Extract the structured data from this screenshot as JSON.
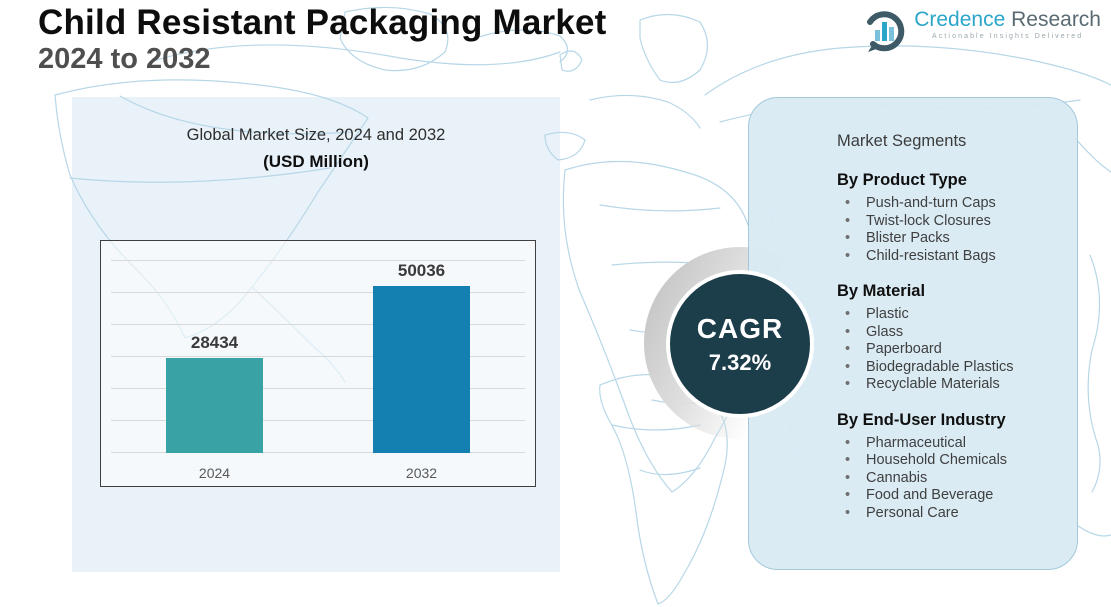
{
  "header": {
    "title": "Child Resistant Packaging Market",
    "subtitle": "2024 to 2032"
  },
  "logo": {
    "brand_primary": "Credence",
    "brand_secondary": "Research",
    "tagline": "Actionable Insights Delivered",
    "accent_color": "#2BA6C9"
  },
  "chart": {
    "heading_line1": "Global Market Size, 2024 and 2032",
    "heading_line2": "(USD Million)"
  },
  "chart_data": {
    "type": "bar",
    "title": "Global Market Size, 2024 and 2032 (USD Million)",
    "categories": [
      "2024",
      "2032"
    ],
    "values": [
      28434,
      50036
    ],
    "xlabel": "",
    "ylabel": "",
    "ylim": [
      0,
      60000
    ],
    "grid": true,
    "legend": false,
    "bar_colors": [
      "#38A2A4",
      "#1480B2"
    ]
  },
  "cagr": {
    "label": "CAGR",
    "value": "7.32%",
    "circle_color": "#1C3D4A"
  },
  "segments": {
    "heading": "Market Segments",
    "groups": [
      {
        "title": "By Product Type",
        "items": [
          "Push-and-turn Caps",
          "Twist-lock Closures",
          "Blister Packs",
          "Child-resistant Bags"
        ]
      },
      {
        "title": "By Material",
        "items": [
          "Plastic",
          "Glass",
          "Paperboard",
          "Biodegradable Plastics",
          "Recyclable Materials"
        ]
      },
      {
        "title": "By End-User Industry",
        "items": [
          "Pharmaceutical",
          "Household Chemicals",
          "Cannabis",
          "Food and Beverage",
          "Personal Care"
        ]
      }
    ]
  }
}
